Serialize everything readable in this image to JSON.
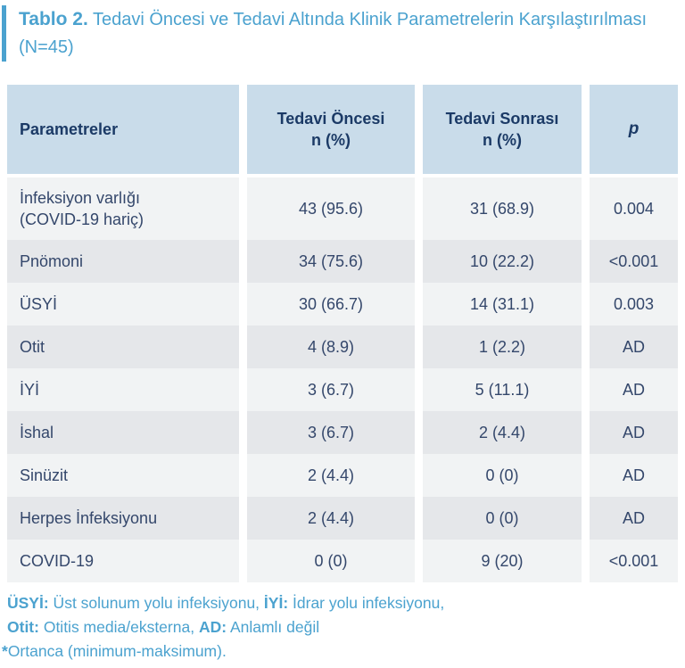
{
  "title": {
    "prefix": "Tablo 2.",
    "text": " Tedavi Öncesi ve Tedavi Altında Klinik Parametrelerin Karşılaştırılması (N=45)"
  },
  "table": {
    "headers": {
      "param": "Parametreler",
      "before": "Tedavi Öncesi\nn (%)",
      "after": "Tedavi Sonrası\nn (%)",
      "p": "p"
    },
    "rows": [
      {
        "param": "İnfeksiyon varlığı\n(COVID-19 hariç)",
        "before": "43 (95.6)",
        "after": "31 (68.9)",
        "p": "0.004"
      },
      {
        "param": "Pnömoni",
        "before": "34 (75.6)",
        "after": "10 (22.2)",
        "p": "<0.001"
      },
      {
        "param": "ÜSYİ",
        "before": "30 (66.7)",
        "after": "14 (31.1)",
        "p": "0.003"
      },
      {
        "param": "Otit",
        "before": "4 (8.9)",
        "after": "1 (2.2)",
        "p": "AD"
      },
      {
        "param": "İYİ",
        "before": "3 (6.7)",
        "after": "5 (11.1)",
        "p": "AD"
      },
      {
        "param": "İshal",
        "before": "3 (6.7)",
        "after": "2 (4.4)",
        "p": "AD"
      },
      {
        "param": "Sinüzit",
        "before": "2 (4.4)",
        "after": "0 (0)",
        "p": "AD"
      },
      {
        "param": "Herpes İnfeksiyonu",
        "before": "2 (4.4)",
        "after": "0 (0)",
        "p": "AD"
      },
      {
        "param": "COVID-19",
        "before": "0 (0)",
        "after": "9 (20)",
        "p": "<0.001"
      }
    ]
  },
  "footnotes": {
    "line1": {
      "b1": "ÜSYİ:",
      "t1": " Üst solunum yolu infeksiyonu, ",
      "b2": "İYİ:",
      "t2": " İdrar yolu infeksiyonu,"
    },
    "line2": {
      "b1": "Otit:",
      "t1": " Otitis media/eksterna, ",
      "b2": "AD:",
      "t2": " Anlamlı değil"
    },
    "line3": {
      "b1": "*",
      "t1": "Ortanca (minimum-maksimum)."
    }
  },
  "colors": {
    "accent_blue": "#4BA2CF",
    "header_bg": "#C9DCEA",
    "header_text": "#1B3A66",
    "body_text": "#34476B",
    "row_light": "#F1F3F4",
    "row_dark": "#E5E7EA"
  }
}
